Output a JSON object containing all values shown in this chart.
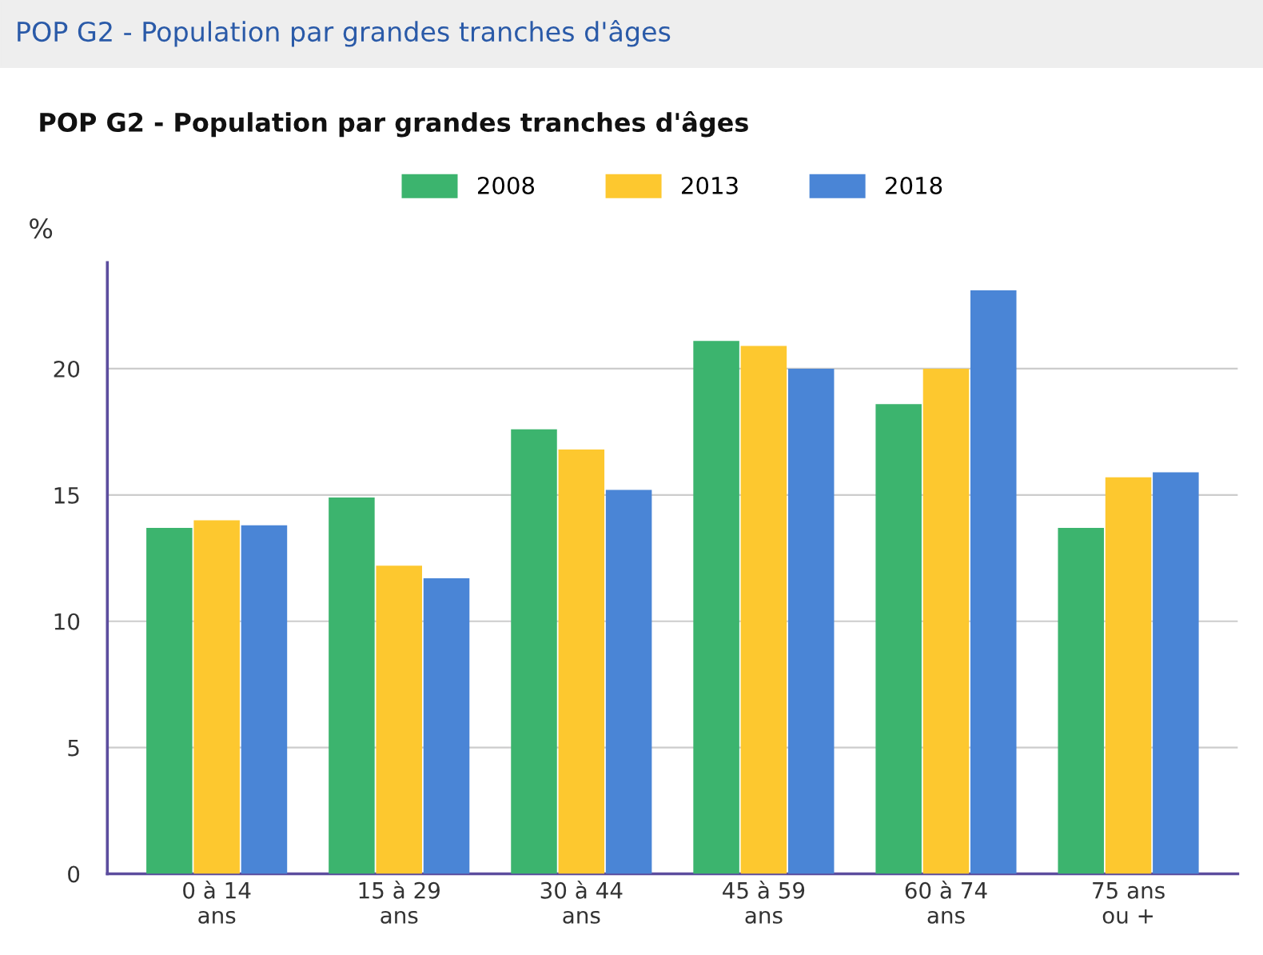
{
  "chart_data": {
    "type": "bar",
    "title": "POP G2 - Population par grandes tranches d'âges",
    "subtitle": "POP G2 - Population par grandes tranches d'âges",
    "ylabel": "%",
    "categories": [
      "0 à 14\nans",
      "15 à 29\nans",
      "30 à 44\nans",
      "45 à 59\nans",
      "60 à 74\nans",
      "75 ans\nou +"
    ],
    "series": [
      {
        "name": "2008",
        "color": "#3cb46e",
        "values": [
          13.7,
          14.9,
          17.6,
          21.1,
          18.6,
          13.7
        ]
      },
      {
        "name": "2013",
        "color": "#fdc82f",
        "values": [
          14.0,
          12.2,
          16.8,
          20.9,
          20.0,
          15.7
        ]
      },
      {
        "name": "2018",
        "color": "#4a85d6",
        "values": [
          13.8,
          11.7,
          15.2,
          20.0,
          23.1,
          15.9
        ]
      }
    ],
    "ylim": [
      0,
      24.2
    ],
    "yticks": [
      0,
      5,
      10,
      15,
      20
    ],
    "grid": "y",
    "legend": "top"
  }
}
